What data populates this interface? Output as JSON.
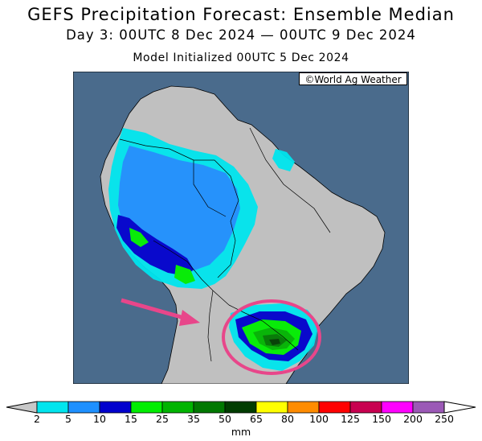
{
  "title": "GEFS Precipitation Forecast: Ensemble Median",
  "subtitle": "Day 3: 00UTC 8 Dec 2024 — 00UTC 9 Dec 2024",
  "init_line": "Model Initialized 00UTC 5 Dec 2024",
  "credit": "©World Ag Weather",
  "colorbar": {
    "unit": "mm",
    "ticks": [
      "2",
      "5",
      "10",
      "15",
      "25",
      "35",
      "50",
      "65",
      "80",
      "100",
      "125",
      "150",
      "200",
      "250"
    ],
    "colors": [
      "#00e5ee",
      "#1e90ff",
      "#0000cd",
      "#00ee00",
      "#00b400",
      "#007800",
      "#003c00",
      "#ffff00",
      "#ff8c00",
      "#ff0000",
      "#c80050",
      "#ff00ff",
      "#9b59b6"
    ],
    "below_color": "#c8c8c8",
    "above_color": "#ffffff"
  },
  "map_colors": {
    "ocean": "#4a6b8c",
    "land": "#c0c0c0",
    "borders": "#000000"
  },
  "annotations": {
    "arrow_color": "#e8468a",
    "circle_color": "#e8468a"
  }
}
